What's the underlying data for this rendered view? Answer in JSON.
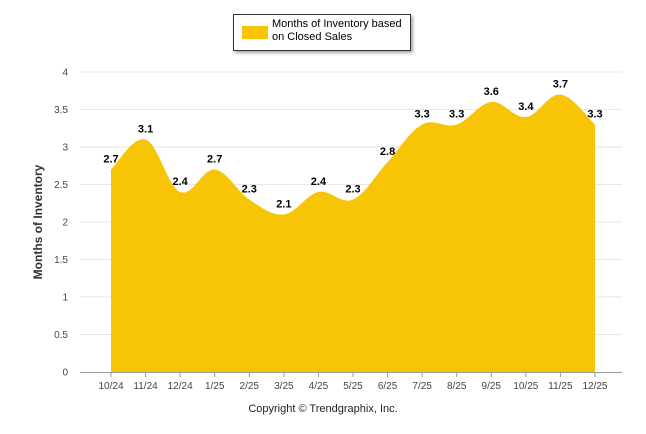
{
  "chart_data": {
    "type": "area",
    "categories": [
      "10/24",
      "11/24",
      "12/24",
      "1/25",
      "2/25",
      "3/25",
      "4/25",
      "5/25",
      "6/25",
      "7/25",
      "8/25",
      "9/25",
      "10/25",
      "11/25",
      "12/25"
    ],
    "series": [
      {
        "name": "Months of Inventory based on Closed Sales",
        "values": [
          2.7,
          3.1,
          2.4,
          2.7,
          2.3,
          2.1,
          2.4,
          2.3,
          2.8,
          3.3,
          3.3,
          3.6,
          3.4,
          3.7,
          3.3
        ]
      }
    ],
    "data_labels": [
      "2.7",
      "3.1",
      "2.4",
      "2.7",
      "2.3",
      "2.1",
      "2.4",
      "2.3",
      "2.8",
      "3.3",
      "3.3",
      "3.6",
      "3.4",
      "3.7",
      "3.3"
    ],
    "ylabel": "Months of Inventory",
    "xlabel": "",
    "ylim": [
      0,
      4
    ],
    "yticks": [
      "0",
      "0.5",
      "1",
      "1.5",
      "2",
      "2.5",
      "3",
      "3.5",
      "4"
    ],
    "ytick_values": [
      0,
      0.5,
      1,
      1.5,
      2,
      2.5,
      3,
      3.5,
      4
    ],
    "grid": true,
    "legend_placement": "top-center",
    "colors": {
      "area": "#F8C406",
      "grid": "#e6e6e6",
      "axis": "#999999"
    }
  },
  "legend": {
    "label": "Months of Inventory based on Closed Sales"
  },
  "footer": {
    "copyright": "Copyright © Trendgraphix, Inc."
  }
}
